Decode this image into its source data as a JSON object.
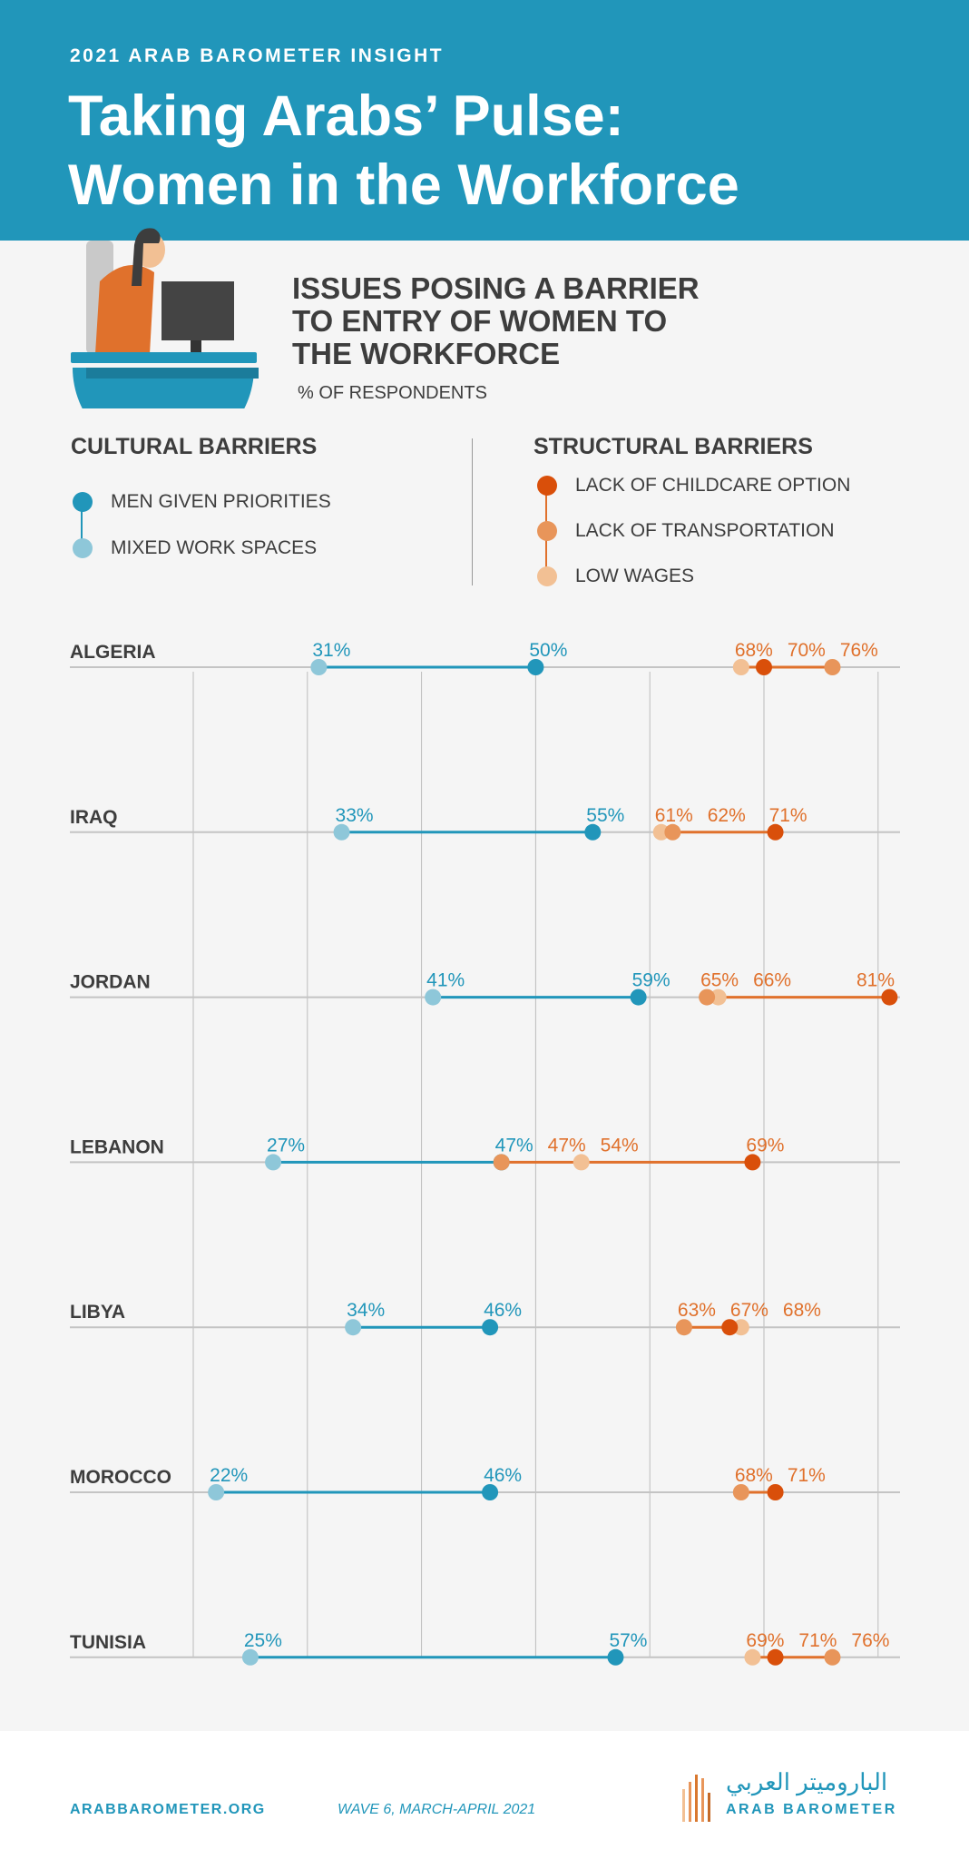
{
  "header": {
    "kicker": "2021 ARAB BAROMETER INSIGHT",
    "title_line1": "Taking Arabs’ Pulse:",
    "title_line2": "Women in the Workforce"
  },
  "chart_heading": {
    "line1": "ISSUES POSING A BARRIER",
    "line2": "TO ENTRY OF WOMEN TO",
    "line3": "THE WORKFORCE",
    "subtitle": "% OF RESPONDENTS"
  },
  "legend": {
    "cultural": {
      "title": "CULTURAL BARRIERS",
      "items": [
        {
          "label": "MEN GIVEN PRIORITIES",
          "color": "#2196ba"
        },
        {
          "label": "MIXED WORK SPACES",
          "color": "#8ec7d9"
        }
      ]
    },
    "structural": {
      "title": "STRUCTURAL BARRIERS",
      "items": [
        {
          "label": "LACK OF CHILDCARE OPTION",
          "color": "#d94f0a"
        },
        {
          "label": "LACK OF TRANSPORTATION",
          "color": "#e8955a"
        },
        {
          "label": "LOW WAGES",
          "color": "#f2c094"
        }
      ]
    }
  },
  "chart_data": {
    "type": "dot-range",
    "unit": "%",
    "xlim": [
      20,
      80
    ],
    "gridlines": [
      20,
      30,
      40,
      50,
      60,
      70,
      80
    ],
    "series": [
      {
        "name": "MEN GIVEN PRIORITIES",
        "key": "men",
        "color": "#2196ba"
      },
      {
        "name": "MIXED WORK SPACES",
        "key": "mixed",
        "color": "#8ec7d9"
      },
      {
        "name": "LACK OF CHILDCARE OPTION",
        "key": "childcare",
        "color": "#d94f0a"
      },
      {
        "name": "LACK OF TRANSPORTATION",
        "key": "transport",
        "color": "#e8955a"
      },
      {
        "name": "LOW WAGES",
        "key": "wages",
        "color": "#f2c094"
      }
    ],
    "countries": [
      {
        "name": "ALGERIA",
        "mixed": 31,
        "men": 50,
        "childcare": 70,
        "transport": 76,
        "wages": 68,
        "labels": [
          "31%",
          "50%",
          "68%",
          "70%",
          "76%"
        ]
      },
      {
        "name": "IRAQ",
        "mixed": 33,
        "men": 55,
        "childcare": 71,
        "transport": 62,
        "wages": 61,
        "labels": [
          "33%",
          "55%",
          "61%",
          "62%",
          "71%"
        ]
      },
      {
        "name": "JORDAN",
        "mixed": 41,
        "men": 59,
        "childcare": 81,
        "transport": 65,
        "wages": 66,
        "labels": [
          "41%",
          "59%",
          "65%",
          "66%",
          "81%"
        ]
      },
      {
        "name": "LEBANON",
        "mixed": 27,
        "men": 47,
        "childcare": 69,
        "transport": 47,
        "wages": 54,
        "labels": [
          "27%",
          "47%",
          "47%",
          "54%",
          "69%"
        ]
      },
      {
        "name": "LIBYA",
        "mixed": 34,
        "men": 46,
        "childcare": 67,
        "transport": 63,
        "wages": 68,
        "labels": [
          "34%",
          "46%",
          "63%",
          "67%",
          "68%"
        ]
      },
      {
        "name": "MOROCCO",
        "mixed": 22,
        "men": 46,
        "childcare": 71,
        "transport": 68,
        "wages": 71,
        "labels": [
          "22%",
          "46%",
          "68%",
          "71%"
        ]
      },
      {
        "name": "TUNISIA",
        "mixed": 25,
        "men": 57,
        "childcare": 71,
        "transport": 76,
        "wages": 69,
        "labels": [
          "25%",
          "57%",
          "69%",
          "71%",
          "76%"
        ]
      }
    ],
    "label_colors": {
      "cultural": "#2196ba",
      "structural": "#e0712c"
    }
  },
  "footer": {
    "site": "ARABBAROMETER.ORG",
    "wave": "WAVE 6, MARCH-APRIL 2021",
    "logo_arabic": "البارومیتر العربي",
    "logo_english": "ARAB BAROMETER",
    "logo_colors": [
      "#f2c094",
      "#e8955a",
      "#d9782f",
      "#e8955a",
      "#c56a28"
    ]
  }
}
